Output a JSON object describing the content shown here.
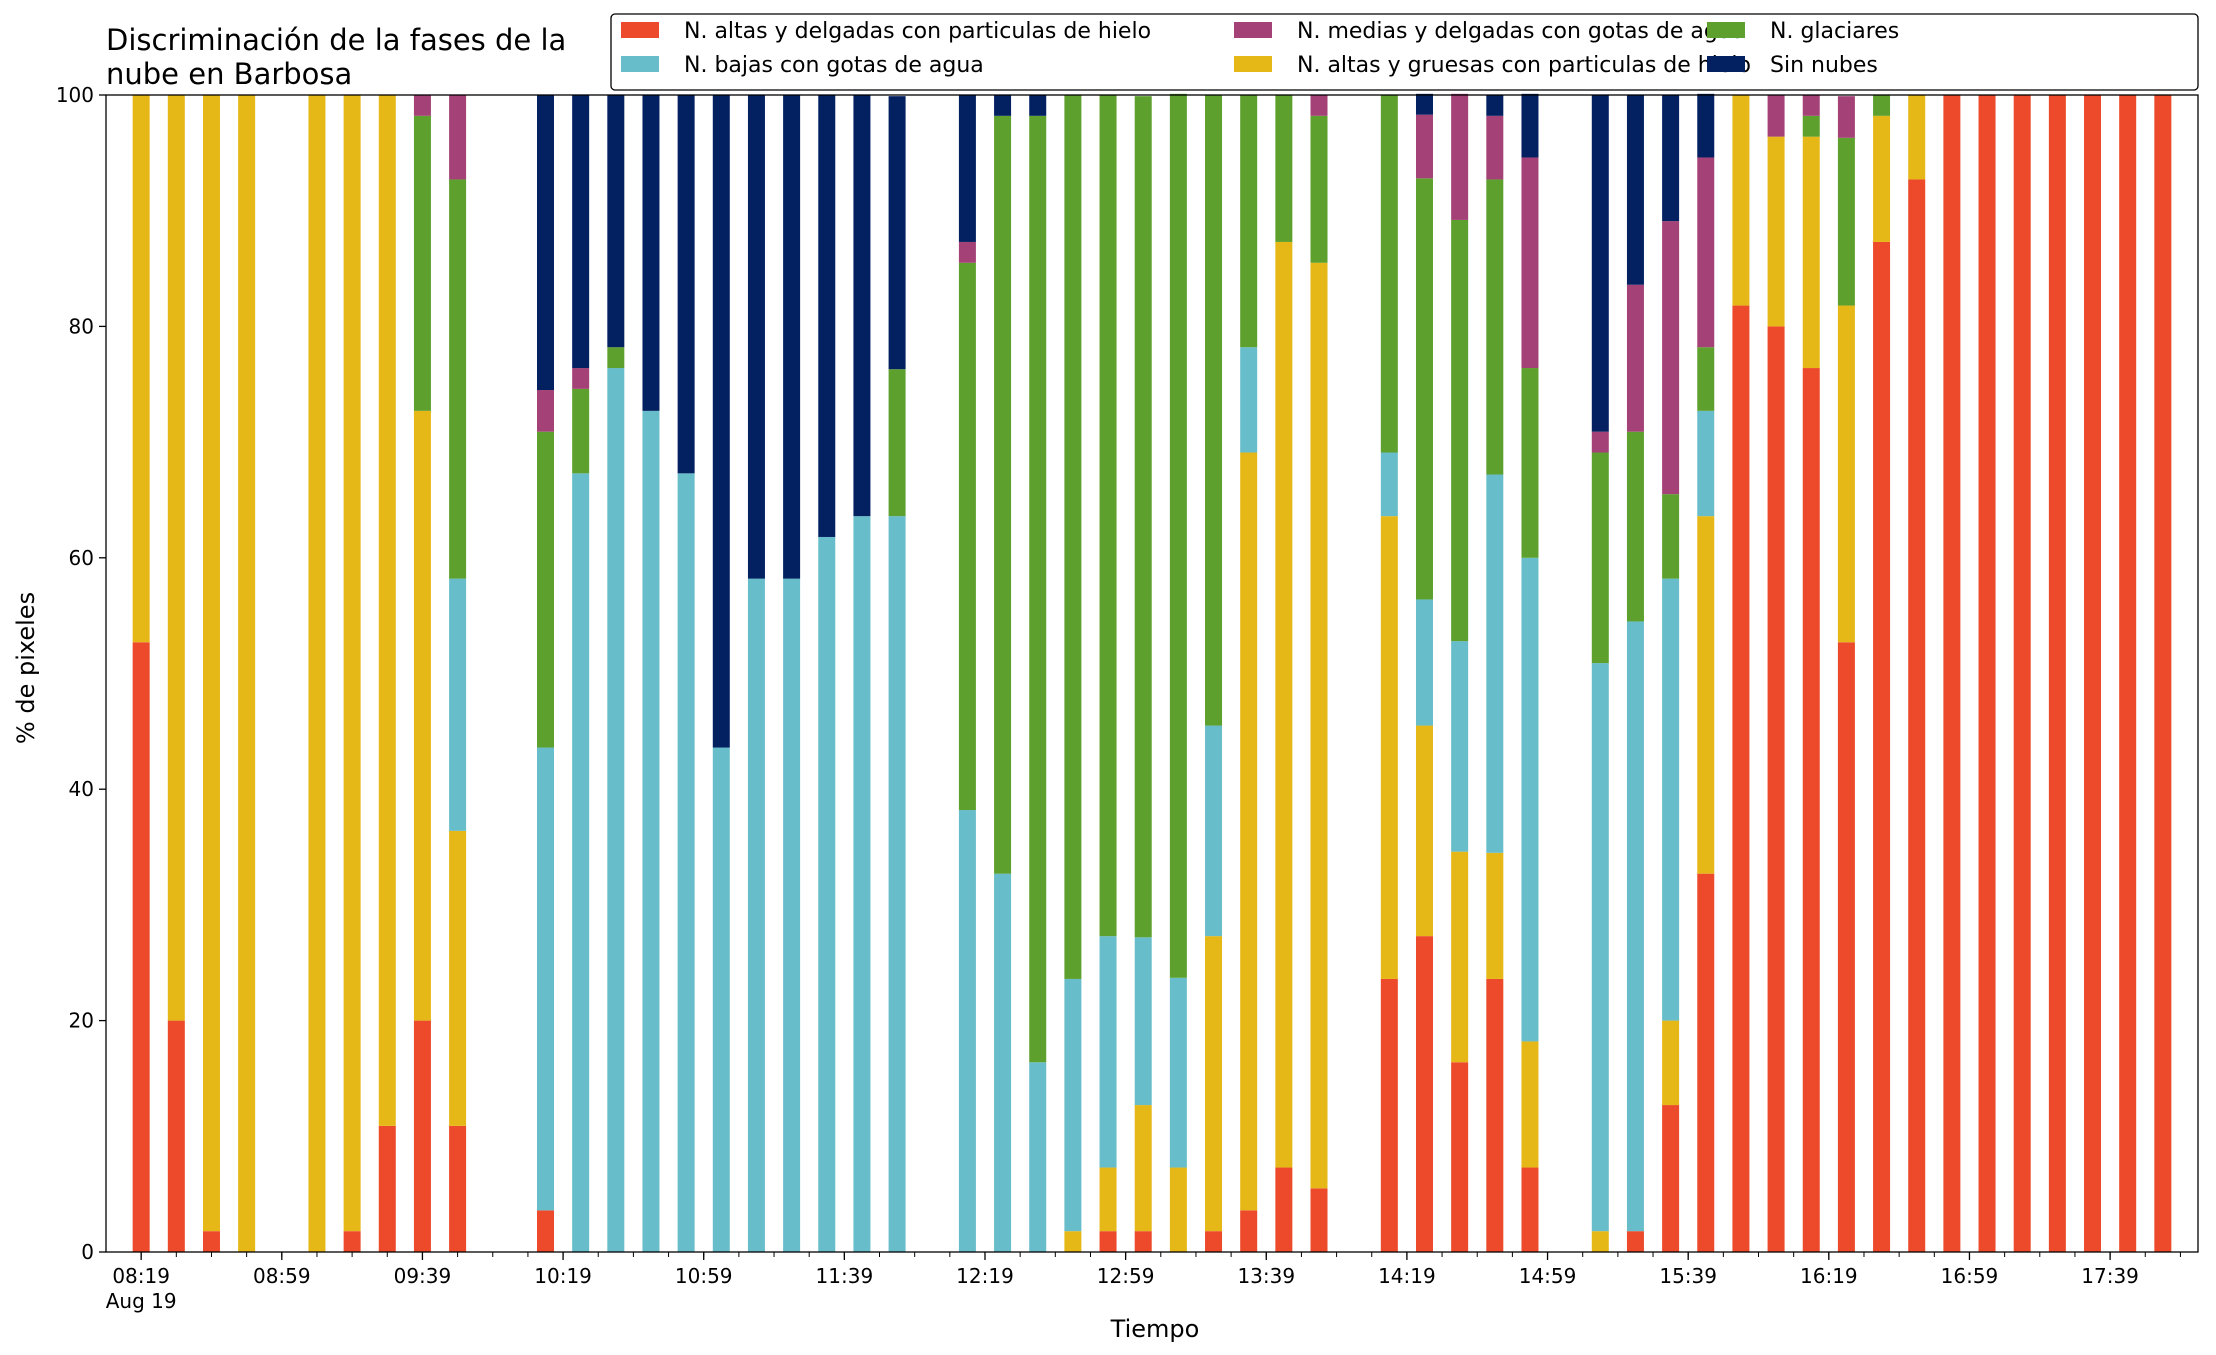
{
  "chart_data": {
    "type": "bar",
    "stacked": true,
    "title_lines": [
      "Discriminación de la fases de la",
      "nube en Barbosa"
    ],
    "xlabel": "Tiempo",
    "ylabel": "% de pixeles",
    "ylim": [
      0,
      100
    ],
    "yticks": [
      0,
      20,
      40,
      60,
      80,
      100
    ],
    "xtick_labels": [
      {
        "label": "08:19",
        "minute": 0,
        "sub": "Aug 19"
      },
      {
        "label": "08:59",
        "minute": 40
      },
      {
        "label": "09:39",
        "minute": 80
      },
      {
        "label": "10:19",
        "minute": 120
      },
      {
        "label": "10:59",
        "minute": 160
      },
      {
        "label": "11:39",
        "minute": 200
      },
      {
        "label": "12:19",
        "minute": 240
      },
      {
        "label": "12:59",
        "minute": 280
      },
      {
        "label": "13:39",
        "minute": 320
      },
      {
        "label": "14:19",
        "minute": 360
      },
      {
        "label": "14:59",
        "minute": 400
      },
      {
        "label": "15:39",
        "minute": 440
      },
      {
        "label": "16:19",
        "minute": 480
      },
      {
        "label": "16:59",
        "minute": 520
      },
      {
        "label": "17:39",
        "minute": 560
      }
    ],
    "minor_tick_step_minutes": 10,
    "grid": false,
    "legend_position": "top-right",
    "series": [
      {
        "name": "N. altas y delgadas con particulas de hielo",
        "color": "#ec4a2b"
      },
      {
        "name": "N. altas y gruesas con particulas de hielo",
        "color": "#e6b817"
      },
      {
        "name": "N. bajas con gotas de agua",
        "color": "#68bdca"
      },
      {
        "name": "N. glaciares",
        "color": "#5ea02d"
      },
      {
        "name": "N. medias y delgadas con gotas de agua",
        "color": "#a44277"
      },
      {
        "name": "Sin nubes",
        "color": "#032061"
      }
    ],
    "legend_order": [
      0,
      2,
      4,
      1,
      3,
      5
    ],
    "bars": [
      {
        "minute": 0,
        "values": [
          52.7,
          47.3,
          0,
          0,
          0,
          0
        ]
      },
      {
        "minute": 10,
        "values": [
          20.0,
          80.0,
          0,
          0,
          0,
          0
        ]
      },
      {
        "minute": 20,
        "values": [
          1.8,
          98.2,
          0,
          0,
          0,
          0
        ]
      },
      {
        "minute": 30,
        "values": [
          0,
          100,
          0,
          0,
          0,
          0
        ]
      },
      {
        "minute": 50,
        "values": [
          0,
          100,
          0,
          0,
          0,
          0
        ]
      },
      {
        "minute": 60,
        "values": [
          1.8,
          98.2,
          0,
          0,
          0,
          0
        ]
      },
      {
        "minute": 70,
        "values": [
          10.9,
          89.1,
          0,
          0,
          0,
          0
        ]
      },
      {
        "minute": 80,
        "values": [
          20.0,
          52.7,
          0,
          25.5,
          1.8,
          0
        ]
      },
      {
        "minute": 90,
        "values": [
          10.9,
          25.5,
          21.8,
          34.5,
          7.3,
          0
        ]
      },
      {
        "minute": 115,
        "values": [
          3.6,
          0,
          40.0,
          27.3,
          3.6,
          25.5
        ]
      },
      {
        "minute": 125,
        "values": [
          0,
          0,
          67.3,
          7.3,
          1.8,
          23.6
        ]
      },
      {
        "minute": 135,
        "values": [
          0,
          0,
          76.4,
          1.8,
          0,
          21.8
        ]
      },
      {
        "minute": 145,
        "values": [
          0,
          0,
          72.7,
          0,
          0,
          27.3
        ]
      },
      {
        "minute": 155,
        "values": [
          0,
          0,
          67.3,
          0,
          0,
          32.7
        ]
      },
      {
        "minute": 165,
        "values": [
          0,
          0,
          43.6,
          0,
          0,
          56.4
        ]
      },
      {
        "minute": 175,
        "values": [
          0,
          0,
          58.2,
          0,
          0,
          41.8
        ]
      },
      {
        "minute": 185,
        "values": [
          0,
          0,
          58.2,
          0,
          0,
          41.8
        ]
      },
      {
        "minute": 195,
        "values": [
          0,
          0,
          61.8,
          0,
          0,
          38.2
        ]
      },
      {
        "minute": 205,
        "values": [
          0,
          0,
          63.6,
          0,
          0,
          36.4
        ]
      },
      {
        "minute": 215,
        "values": [
          0,
          0,
          63.6,
          12.7,
          0,
          23.6
        ]
      },
      {
        "minute": 235,
        "values": [
          0,
          0,
          38.2,
          47.3,
          1.8,
          12.7
        ]
      },
      {
        "minute": 245,
        "values": [
          0,
          0,
          32.7,
          65.5,
          0,
          1.8
        ]
      },
      {
        "minute": 255,
        "values": [
          0,
          0,
          16.4,
          81.8,
          0,
          1.8
        ]
      },
      {
        "minute": 265,
        "values": [
          0,
          1.8,
          21.8,
          76.4,
          0,
          0
        ]
      },
      {
        "minute": 275,
        "values": [
          1.8,
          5.5,
          20.0,
          72.7,
          0,
          0
        ]
      },
      {
        "minute": 285,
        "values": [
          1.8,
          10.9,
          14.5,
          72.7,
          0,
          0
        ]
      },
      {
        "minute": 295,
        "values": [
          0,
          7.3,
          16.4,
          76.4,
          0,
          0
        ]
      },
      {
        "minute": 305,
        "values": [
          1.8,
          25.5,
          18.2,
          54.5,
          0,
          0
        ]
      },
      {
        "minute": 315,
        "values": [
          3.6,
          65.5,
          9.1,
          21.8,
          0,
          0
        ]
      },
      {
        "minute": 325,
        "values": [
          7.3,
          80.0,
          0,
          12.7,
          0,
          0
        ]
      },
      {
        "minute": 335,
        "values": [
          5.5,
          80.0,
          0,
          12.7,
          1.8,
          0
        ]
      },
      {
        "minute": 355,
        "values": [
          23.6,
          40.0,
          5.5,
          30.9,
          0,
          0
        ]
      },
      {
        "minute": 365,
        "values": [
          27.3,
          18.2,
          10.9,
          36.4,
          5.5,
          1.8
        ]
      },
      {
        "minute": 375,
        "values": [
          16.4,
          18.2,
          18.2,
          36.4,
          10.9,
          0
        ]
      },
      {
        "minute": 385,
        "values": [
          23.6,
          10.9,
          32.7,
          25.5,
          5.5,
          1.8
        ]
      },
      {
        "minute": 395,
        "values": [
          7.3,
          10.9,
          41.8,
          16.4,
          18.2,
          5.5
        ]
      },
      {
        "minute": 415,
        "values": [
          0,
          1.8,
          49.1,
          18.2,
          1.8,
          29.1
        ]
      },
      {
        "minute": 425,
        "values": [
          1.8,
          0,
          52.7,
          16.4,
          12.7,
          16.4
        ]
      },
      {
        "minute": 435,
        "values": [
          12.7,
          7.3,
          38.2,
          7.3,
          23.6,
          10.9
        ]
      },
      {
        "minute": 445,
        "values": [
          32.7,
          30.9,
          9.1,
          5.5,
          16.4,
          5.5
        ]
      },
      {
        "minute": 455,
        "values": [
          81.8,
          18.2,
          0,
          0,
          0,
          0
        ]
      },
      {
        "minute": 465,
        "values": [
          80.0,
          16.4,
          0,
          0,
          3.6,
          0
        ]
      },
      {
        "minute": 475,
        "values": [
          76.4,
          20.0,
          0,
          1.8,
          1.8,
          0
        ]
      },
      {
        "minute": 485,
        "values": [
          52.7,
          29.1,
          0,
          14.5,
          3.6,
          0
        ]
      },
      {
        "minute": 495,
        "values": [
          87.3,
          10.9,
          0,
          1.8,
          0,
          0
        ]
      },
      {
        "minute": 505,
        "values": [
          92.7,
          7.3,
          0,
          0,
          0,
          0
        ]
      },
      {
        "minute": 515,
        "values": [
          100,
          0,
          0,
          0,
          0,
          0
        ]
      },
      {
        "minute": 525,
        "values": [
          100,
          0,
          0,
          0,
          0,
          0
        ]
      },
      {
        "minute": 535,
        "values": [
          100,
          0,
          0,
          0,
          0,
          0
        ]
      },
      {
        "minute": 545,
        "values": [
          100,
          0,
          0,
          0,
          0,
          0
        ]
      },
      {
        "minute": 555,
        "values": [
          100,
          0,
          0,
          0,
          0,
          0
        ]
      },
      {
        "minute": 565,
        "values": [
          100,
          0,
          0,
          0,
          0,
          0
        ]
      },
      {
        "minute": 575,
        "values": [
          100,
          0,
          0,
          0,
          0,
          0
        ]
      }
    ]
  }
}
